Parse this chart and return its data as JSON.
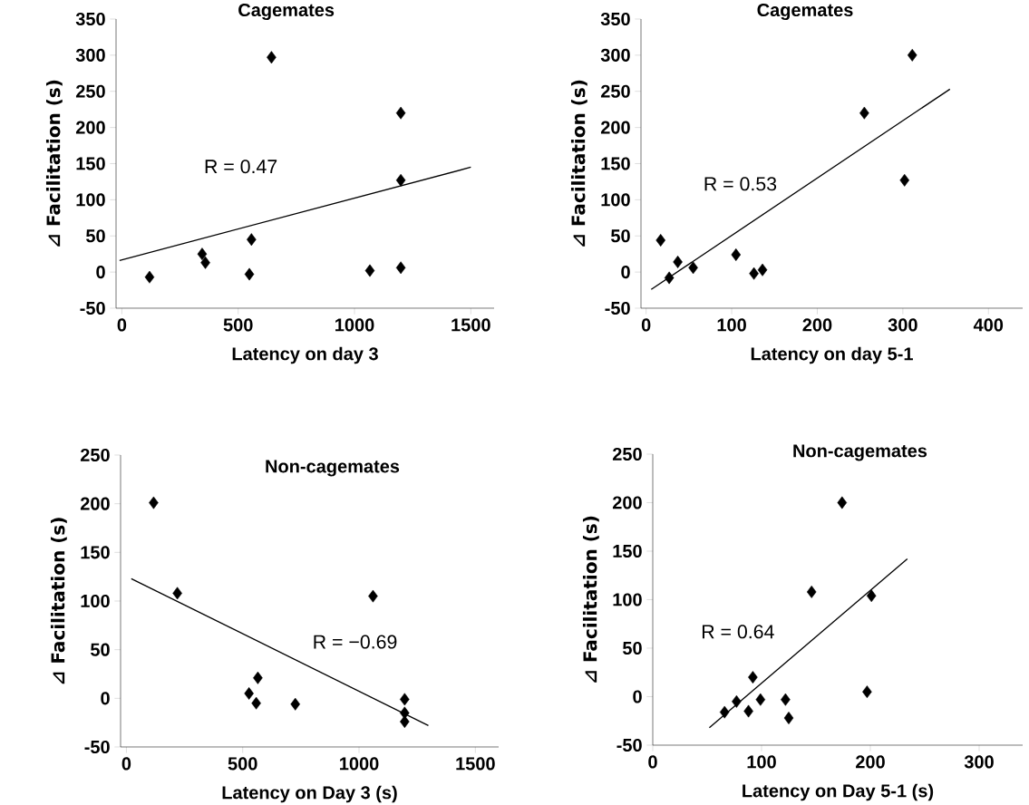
{
  "chart_data": [
    {
      "type": "scatter",
      "title": "Cagemates",
      "xlabel": "Latency on day 3",
      "ylabel": "⊿ Facilitation (s)",
      "xlim": [
        -25,
        1600
      ],
      "ylim": [
        -50,
        350
      ],
      "xticks": [
        0,
        500,
        1000,
        1500
      ],
      "yticks": [
        -50,
        0,
        50,
        100,
        150,
        200,
        250,
        300,
        350
      ],
      "annotations": [
        "R = 0.47"
      ],
      "series": [
        {
          "marker": "diamond",
          "color": "#000000",
          "x": [
            119,
            345,
            359,
            557,
            548,
            643,
            1066,
            1199,
            1199,
            1199
          ],
          "values": [
            -7,
            25,
            13,
            45,
            -3,
            297,
            2,
            6,
            127,
            220
          ]
        },
        {
          "type": "line",
          "color": "#000000",
          "x": [
            -10,
            1500
          ],
          "values": [
            16,
            145
          ]
        }
      ]
    },
    {
      "type": "scatter",
      "title": "Cagemates",
      "xlabel": "Latency on day 5-1",
      "ylabel": "⊿ Facilitation (s)",
      "xlim": [
        -6,
        440
      ],
      "ylim": [
        -50,
        350
      ],
      "xticks": [
        0,
        100,
        200,
        300,
        400
      ],
      "yticks": [
        -50,
        0,
        50,
        100,
        150,
        200,
        250,
        300,
        350
      ],
      "annotations": [
        "R = 0.53"
      ],
      "series": [
        {
          "marker": "diamond",
          "color": "#000000",
          "x": [
            17,
            27,
            37,
            55,
            105,
            126,
            136,
            255,
            302,
            311
          ],
          "values": [
            44,
            -8,
            14,
            6,
            24,
            -2,
            3,
            220,
            127,
            300
          ]
        },
        {
          "type": "line",
          "color": "#000000",
          "x": [
            6,
            355
          ],
          "values": [
            -24,
            253
          ]
        }
      ]
    },
    {
      "type": "scatter",
      "title": "Non-cagemates",
      "xlabel": "Latency on Day 3 (s)",
      "ylabel": "⊿ Facilitation (s)",
      "xlim": [
        -25,
        1600
      ],
      "ylim": [
        -50,
        250
      ],
      "xticks": [
        0,
        500,
        1000,
        1500
      ],
      "yticks": [
        -50,
        0,
        50,
        100,
        150,
        200,
        250
      ],
      "annotations": [
        "R = −0.69"
      ],
      "series": [
        {
          "marker": "diamond",
          "color": "#000000",
          "x": [
            117,
            219,
            1060,
            565,
            527,
            558,
            726,
            1196,
            1196,
            1196
          ],
          "values": [
            201,
            108,
            105,
            21,
            5,
            -5,
            -6,
            -1,
            -15,
            -24
          ]
        },
        {
          "type": "line",
          "color": "#000000",
          "x": [
            21,
            1298
          ],
          "values": [
            123,
            -28
          ]
        }
      ]
    },
    {
      "type": "scatter",
      "title": "Non-cagemates",
      "xlabel": "Latency on Day 5-1 (s)",
      "ylabel": "⊿ Facilitation (s)",
      "xlim": [
        0,
        340
      ],
      "ylim": [
        -50,
        250
      ],
      "xticks": [
        0,
        100,
        200,
        300
      ],
      "yticks": [
        -50,
        0,
        50,
        100,
        150,
        200,
        250
      ],
      "annotations": [
        "R = 0.64"
      ],
      "series": [
        {
          "marker": "diamond",
          "color": "#000000",
          "x": [
            66,
            77,
            88,
            92,
            99,
            122,
            125,
            146,
            174,
            201,
            197
          ],
          "values": [
            -16,
            -5,
            -15,
            20,
            -3,
            -3,
            -22,
            108,
            200,
            104,
            5
          ]
        },
        {
          "type": "line",
          "color": "#000000",
          "x": [
            52,
            234
          ],
          "values": [
            -32,
            142
          ]
        }
      ]
    }
  ]
}
